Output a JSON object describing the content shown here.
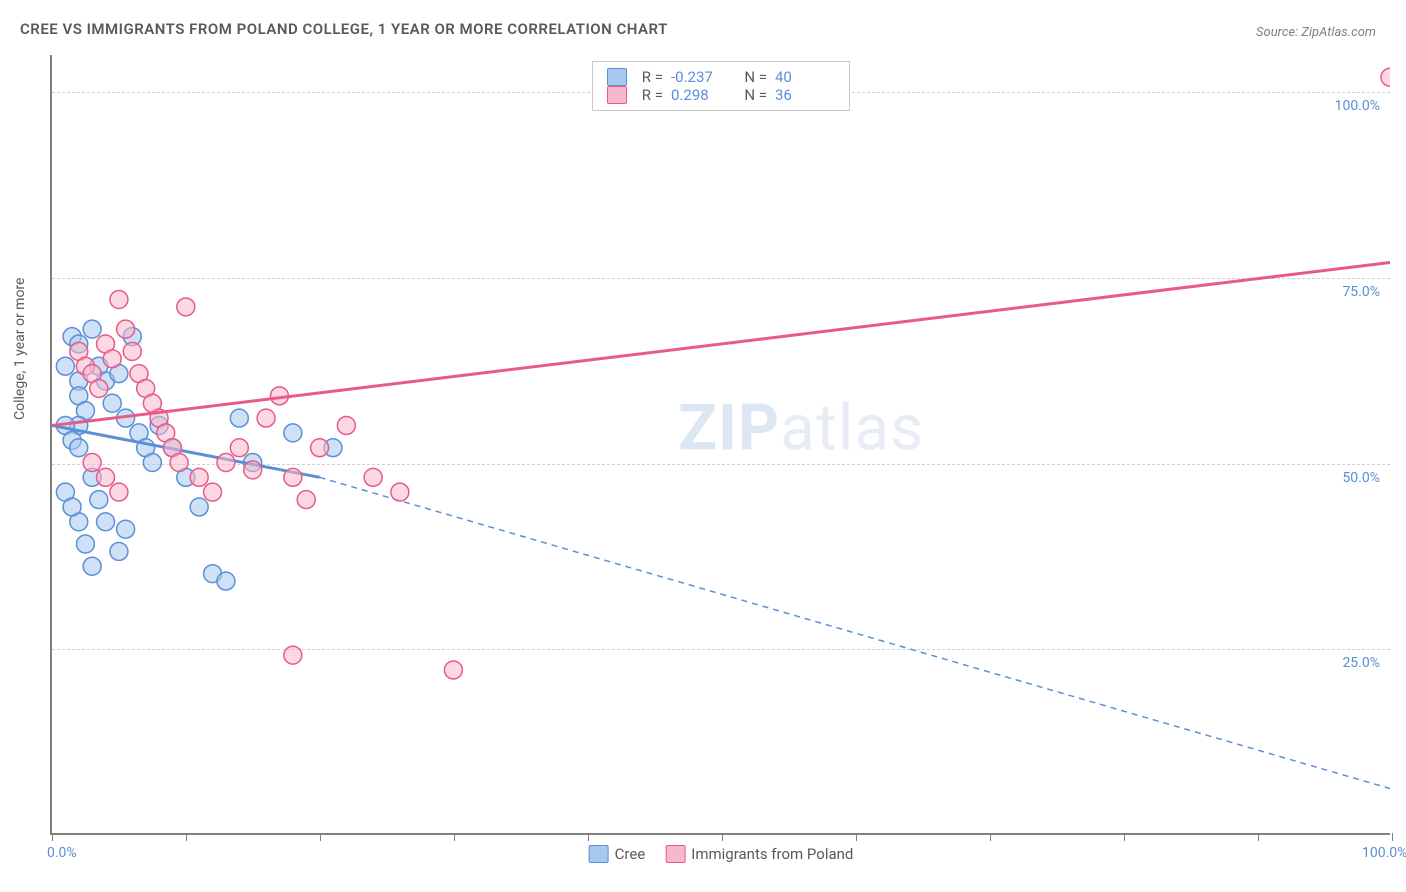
{
  "title": "CREE VS IMMIGRANTS FROM POLAND COLLEGE, 1 YEAR OR MORE CORRELATION CHART",
  "source": "Source: ZipAtlas.com",
  "yaxis_label": "College, 1 year or more",
  "watermark": {
    "bold": "ZIP",
    "rest": "atlas"
  },
  "chart": {
    "type": "scatter-correlation",
    "background_color": "#ffffff",
    "grid_color": "#d0d0d0",
    "axis_color": "#808080",
    "tick_label_color": "#5b8fd6",
    "text_color": "#595959",
    "xlim": [
      0,
      100
    ],
    "ylim": [
      0,
      105
    ],
    "x_ticks_pct": [
      0,
      10,
      20,
      30,
      40,
      50,
      60,
      70,
      80,
      90,
      100
    ],
    "x_tick_labels": {
      "0": "0.0%",
      "100": "100.0%"
    },
    "y_gridlines": [
      25,
      50,
      75,
      100
    ],
    "y_tick_labels": {
      "25": "25.0%",
      "50": "50.0%",
      "75": "75.0%",
      "100": "100.0%"
    },
    "marker_radius": 9,
    "marker_stroke_width": 1.5,
    "trend_line_width": 3,
    "series": [
      {
        "name": "Cree",
        "fill": "#a8c8ee",
        "stroke": "#5b8fd6",
        "fill_opacity": 0.55,
        "R": "-0.237",
        "N": "40",
        "trend": {
          "x1": 0,
          "y1": 55,
          "x2": 20,
          "y2": 48,
          "solid": true,
          "then_dash_to": {
            "x": 100,
            "y": 6
          }
        },
        "points": [
          [
            1,
            63
          ],
          [
            1.5,
            67
          ],
          [
            2,
            66
          ],
          [
            2,
            61
          ],
          [
            2,
            59
          ],
          [
            2.5,
            57
          ],
          [
            2,
            55
          ],
          [
            1,
            55
          ],
          [
            1.5,
            53
          ],
          [
            2,
            52
          ],
          [
            3,
            68
          ],
          [
            3.5,
            63
          ],
          [
            4,
            61
          ],
          [
            4.5,
            58
          ],
          [
            5,
            62
          ],
          [
            5.5,
            56
          ],
          [
            6,
            67
          ],
          [
            6.5,
            54
          ],
          [
            7,
            52
          ],
          [
            7.5,
            50
          ],
          [
            3,
            48
          ],
          [
            3.5,
            45
          ],
          [
            4,
            42
          ],
          [
            2,
            42
          ],
          [
            2.5,
            39
          ],
          [
            3,
            36
          ],
          [
            5,
            38
          ],
          [
            5.5,
            41
          ],
          [
            1,
            46
          ],
          [
            1.5,
            44
          ],
          [
            8,
            55
          ],
          [
            9,
            52
          ],
          [
            10,
            48
          ],
          [
            11,
            44
          ],
          [
            12,
            35
          ],
          [
            13,
            34
          ],
          [
            14,
            56
          ],
          [
            15,
            50
          ],
          [
            18,
            54
          ],
          [
            21,
            52
          ]
        ]
      },
      {
        "name": "Immigrants from Poland",
        "fill": "#f7b8cb",
        "stroke": "#e85a8a",
        "fill_opacity": 0.55,
        "R": "0.298",
        "N": "36",
        "trend": {
          "x1": 0,
          "y1": 55,
          "x2": 100,
          "y2": 77,
          "solid": true
        },
        "points": [
          [
            2,
            65
          ],
          [
            2.5,
            63
          ],
          [
            3,
            62
          ],
          [
            3.5,
            60
          ],
          [
            4,
            66
          ],
          [
            4.5,
            64
          ],
          [
            5,
            72
          ],
          [
            5.5,
            68
          ],
          [
            6,
            65
          ],
          [
            6.5,
            62
          ],
          [
            7,
            60
          ],
          [
            7.5,
            58
          ],
          [
            8,
            56
          ],
          [
            8.5,
            54
          ],
          [
            9,
            52
          ],
          [
            9.5,
            50
          ],
          [
            10,
            71
          ],
          [
            11,
            48
          ],
          [
            12,
            46
          ],
          [
            13,
            50
          ],
          [
            14,
            52
          ],
          [
            15,
            49
          ],
          [
            16,
            56
          ],
          [
            17,
            59
          ],
          [
            18,
            48
          ],
          [
            19,
            45
          ],
          [
            20,
            52
          ],
          [
            22,
            55
          ],
          [
            24,
            48
          ],
          [
            26,
            46
          ],
          [
            18,
            24
          ],
          [
            30,
            22
          ],
          [
            3,
            50
          ],
          [
            4,
            48
          ],
          [
            5,
            46
          ],
          [
            100,
            102
          ]
        ]
      }
    ],
    "legend_bottom": [
      {
        "label": "Cree",
        "fill": "#a8c8ee",
        "stroke": "#5b8fd6"
      },
      {
        "label": "Immigrants from Poland",
        "fill": "#f7b8cb",
        "stroke": "#e85a8a"
      }
    ]
  }
}
